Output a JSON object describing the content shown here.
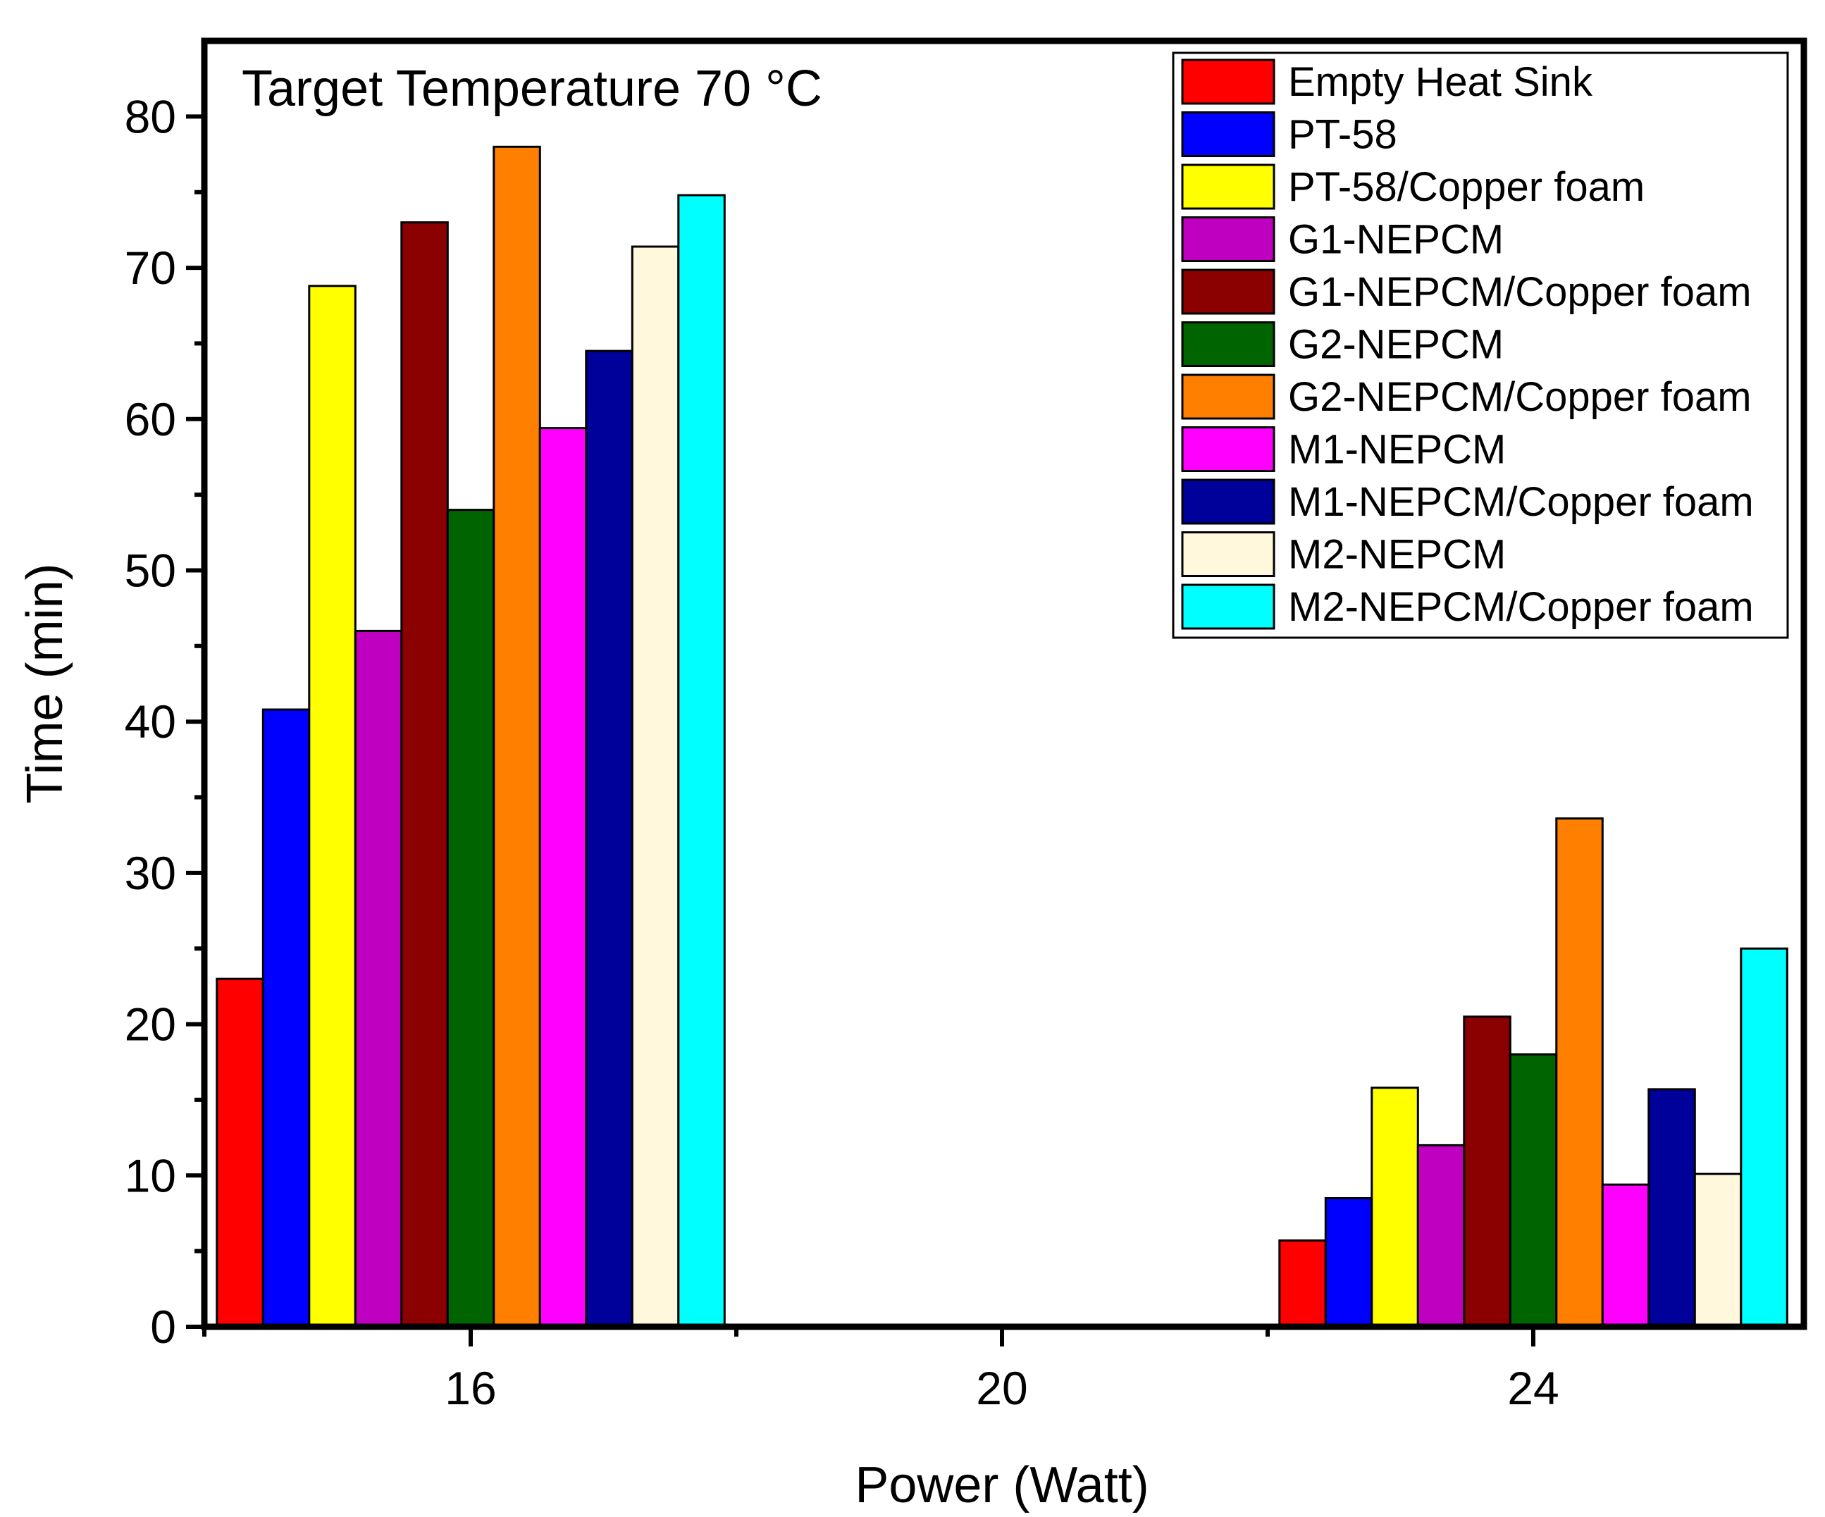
{
  "chart_data": {
    "type": "bar",
    "annotation": "Target Temperature 70 °C",
    "xlabel": "Power (Watt)",
    "ylabel": "Time (min)",
    "categories": [
      "16",
      "20",
      "24"
    ],
    "ylim": [
      0,
      85
    ],
    "yticks": [
      0,
      10,
      20,
      30,
      40,
      50,
      60,
      70,
      80
    ],
    "legend_position": "top-right",
    "series": [
      {
        "name": "Empty Heat Sink",
        "color": "#ff0000",
        "values": [
          23,
          null,
          5.7
        ]
      },
      {
        "name": "PT-58",
        "color": "#0000ff",
        "values": [
          40.8,
          null,
          8.5
        ]
      },
      {
        "name": "PT-58/Copper foam",
        "color": "#ffff00",
        "values": [
          68.8,
          null,
          15.8
        ]
      },
      {
        "name": "G1-NEPCM",
        "color": "#c000c0",
        "values": [
          46,
          null,
          12
        ]
      },
      {
        "name": "G1-NEPCM/Copper foam",
        "color": "#8b0000",
        "values": [
          73,
          null,
          20.5
        ]
      },
      {
        "name": "G2-NEPCM",
        "color": "#006400",
        "values": [
          54,
          null,
          18
        ]
      },
      {
        "name": "G2-NEPCM/Copper foam",
        "color": "#ff7f00",
        "values": [
          78,
          null,
          33.6
        ]
      },
      {
        "name": "M1-NEPCM",
        "color": "#ff00ff",
        "values": [
          59.4,
          null,
          9.4
        ]
      },
      {
        "name": "M1-NEPCM/Copper foam",
        "color": "#00009b",
        "values": [
          64.5,
          null,
          15.7
        ]
      },
      {
        "name": "M2-NEPCM",
        "color": "#fff8dc",
        "values": [
          71.4,
          null,
          10.1
        ]
      },
      {
        "name": "M2-NEPCM/Copper foam",
        "color": "#00ffff",
        "values": [
          74.8,
          null,
          25
        ]
      }
    ]
  }
}
